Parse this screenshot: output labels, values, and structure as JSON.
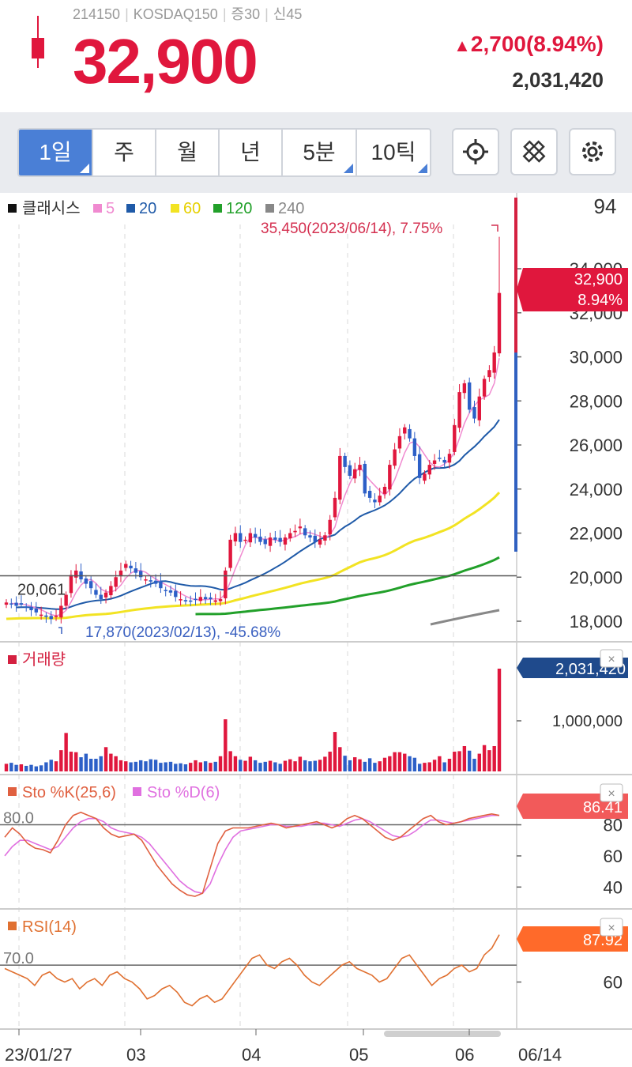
{
  "header": {
    "code": "214150",
    "index": "KOSDAQ150",
    "tag1": "증30",
    "tag2": "신45",
    "price": "32,900",
    "change": "2,700(8.94%)",
    "volume": "2,031,420"
  },
  "toolbar": {
    "periods": [
      "1일",
      "주",
      "월",
      "년",
      "5분",
      "10틱"
    ],
    "active": "1일"
  },
  "colors": {
    "up": "#e0173d",
    "down": "#2c5fc7",
    "ma5": "#f08ad0",
    "ma20": "#1f5aa8",
    "ma60": "#f2e323",
    "ma120": "#22a02a",
    "ma240": "#888888",
    "stoK": "#e06040",
    "stoD": "#e070e0",
    "rsi": "#e07030"
  },
  "chart_data": [
    {
      "type": "candlestick",
      "legend": [
        "클래시스",
        "5",
        "20",
        "60",
        "120",
        "240"
      ],
      "y_ticks": [
        "94",
        "34,000",
        "32,000",
        "30,000",
        "28,000",
        "26,000",
        "24,000",
        "22,000",
        "20,000",
        "18,000"
      ],
      "ylim": [
        17500,
        35800
      ],
      "ref_line": 20061,
      "ref_label": "20,061",
      "high_annotation": "35,450(2023/06/14), 7.75%",
      "low_annotation": "17,870(2023/02/13), -45.68%",
      "current_tag": [
        "32,900",
        "8.94%"
      ],
      "closes": [
        18850,
        18800,
        18700,
        18750,
        18650,
        18500,
        18400,
        18300,
        18200,
        18100,
        18250,
        18700,
        19200,
        20100,
        20300,
        19900,
        19700,
        19500,
        19200,
        19000,
        19300,
        19600,
        20000,
        20300,
        20600,
        20400,
        20200,
        20000,
        19900,
        19800,
        19700,
        19500,
        19400,
        19300,
        19100,
        19000,
        18900,
        18900,
        19000,
        19100,
        19000,
        19000,
        18950,
        19000,
        20300,
        21700,
        22000,
        21600,
        21700,
        22000,
        21800,
        21600,
        21500,
        21800,
        21700,
        21600,
        21800,
        22000,
        22100,
        22300,
        21900,
        21800,
        21600,
        21700,
        21900,
        22600,
        23600,
        25500,
        25000,
        24600,
        24900,
        25100,
        23800,
        23600,
        23400,
        23700,
        24100,
        25100,
        25800,
        26400,
        26800,
        26300,
        25500,
        24500,
        24700,
        25100,
        25300,
        25400,
        25200,
        25600,
        26900,
        28400,
        28800,
        27600,
        27200,
        28200,
        29000,
        29400,
        30200,
        32900
      ],
      "volume_ticks": [
        "1,000,000"
      ],
      "volume_tag": "2,031,420",
      "volumes": [
        150,
        170,
        130,
        140,
        110,
        130,
        100,
        120,
        180,
        230,
        200,
        420,
        760,
        390,
        380,
        280,
        350,
        250,
        250,
        300,
        480,
        350,
        300,
        220,
        200,
        180,
        190,
        220,
        200,
        240,
        230,
        170,
        180,
        190,
        150,
        160,
        140,
        170,
        220,
        180,
        200,
        170,
        190,
        300,
        1030,
        400,
        300,
        230,
        210,
        290,
        220,
        170,
        190,
        210,
        180,
        150,
        210,
        240,
        200,
        290,
        220,
        200,
        210,
        230,
        290,
        390,
        780,
        480,
        310,
        220,
        280,
        240,
        190,
        260,
        170,
        200,
        270,
        300,
        380,
        380,
        350,
        300,
        270,
        150,
        170,
        180,
        230,
        300,
        180,
        250,
        390,
        400,
        500,
        410,
        250,
        350,
        520,
        420,
        500,
        2031
      ]
    },
    {
      "type": "line",
      "legend": [
        "Sto %K(25,6)",
        "Sto %D(6)"
      ],
      "ref_label": "80.0",
      "y_ticks": [
        "80",
        "60",
        "40"
      ],
      "value_tag": "86.41",
      "k": [
        72,
        78,
        74,
        68,
        65,
        64,
        62,
        70,
        80,
        86,
        88,
        86,
        84,
        78,
        74,
        72,
        73,
        74,
        70,
        62,
        54,
        48,
        42,
        38,
        35,
        34,
        36,
        52,
        68,
        76,
        78,
        78,
        78,
        79,
        80,
        81,
        80,
        78,
        79,
        80,
        81,
        82,
        80,
        78,
        80,
        84,
        86,
        84,
        80,
        76,
        72,
        70,
        72,
        76,
        80,
        84,
        86,
        82,
        80,
        81,
        82,
        84,
        85,
        86,
        87,
        86
      ],
      "d": [
        60,
        66,
        70,
        70,
        68,
        66,
        64,
        66,
        72,
        78,
        82,
        84,
        84,
        82,
        78,
        76,
        75,
        74,
        72,
        68,
        62,
        56,
        50,
        44,
        40,
        37,
        36,
        42,
        54,
        64,
        72,
        76,
        77,
        78,
        79,
        80,
        80,
        79,
        79,
        79,
        80,
        81,
        81,
        80,
        79,
        81,
        83,
        84,
        82,
        79,
        76,
        73,
        72,
        73,
        76,
        80,
        83,
        83,
        82,
        81,
        82,
        83,
        84,
        85,
        86,
        86
      ]
    },
    {
      "type": "line",
      "legend": [
        "RSI(14)"
      ],
      "ref_label": "70.0",
      "y_ticks": [
        "60"
      ],
      "value_tag": "87.92",
      "values": [
        68,
        66,
        64,
        62,
        58,
        64,
        66,
        62,
        60,
        62,
        56,
        60,
        62,
        58,
        64,
        66,
        62,
        60,
        56,
        50,
        52,
        56,
        58,
        54,
        48,
        46,
        50,
        52,
        48,
        50,
        56,
        62,
        68,
        74,
        76,
        70,
        68,
        72,
        74,
        70,
        64,
        60,
        58,
        62,
        66,
        70,
        72,
        68,
        66,
        64,
        60,
        62,
        68,
        74,
        76,
        70,
        64,
        58,
        62,
        64,
        68,
        70,
        66,
        68,
        76,
        80,
        88
      ]
    }
  ],
  "x_axis": {
    "labels": [
      "23/01/27",
      "03",
      "04",
      "05",
      "06"
    ],
    "right_label": "06/14"
  }
}
